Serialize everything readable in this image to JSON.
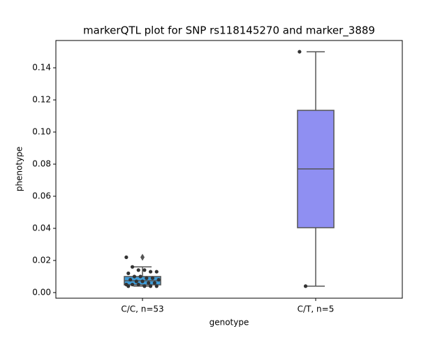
{
  "chart_data": {
    "type": "box",
    "title": "markerQTL plot for SNP rs118145270 and marker_3889",
    "xlabel": "genotype",
    "ylabel": "phenotype",
    "categories": [
      "C/C, n=53",
      "C/T, n=5"
    ],
    "ylim": [
      -0.0035,
      0.157
    ],
    "yticks": [
      {
        "value": 0,
        "label": "0.00"
      },
      {
        "value": 0.02,
        "label": "0.02"
      },
      {
        "value": 0.04,
        "label": "0.04"
      },
      {
        "value": 0.06,
        "label": "0.06"
      },
      {
        "value": 0.08,
        "label": "0.08"
      },
      {
        "value": 0.1,
        "label": "0.10"
      },
      {
        "value": 0.12,
        "label": "0.12"
      },
      {
        "value": 0.14,
        "label": "0.14"
      }
    ],
    "line_color": "#555555",
    "point_color": "#333333",
    "boxes": [
      {
        "whislo": 0.004,
        "q1": 0.0048,
        "med": 0.0074,
        "q3": 0.01,
        "whishi": 0.016,
        "fliers": [
          0.022
        ],
        "color": "#3f9bd6",
        "points": [
          0.022,
          0.016,
          0.014,
          0.014,
          0.013,
          0.013,
          0.012,
          0.01,
          0.01,
          0.009,
          0.009,
          0.008,
          0.008,
          0.007,
          0.007,
          0.006,
          0.006,
          0.005,
          0.005,
          0.005,
          0.004,
          0.004,
          0.004,
          0.004
        ]
      },
      {
        "whislo": 0.004,
        "q1": 0.0404,
        "med": 0.077,
        "q3": 0.1135,
        "whishi": 0.15,
        "fliers": [],
        "color": "#8f8ff2",
        "points": [
          0.15,
          0.004
        ]
      }
    ]
  }
}
